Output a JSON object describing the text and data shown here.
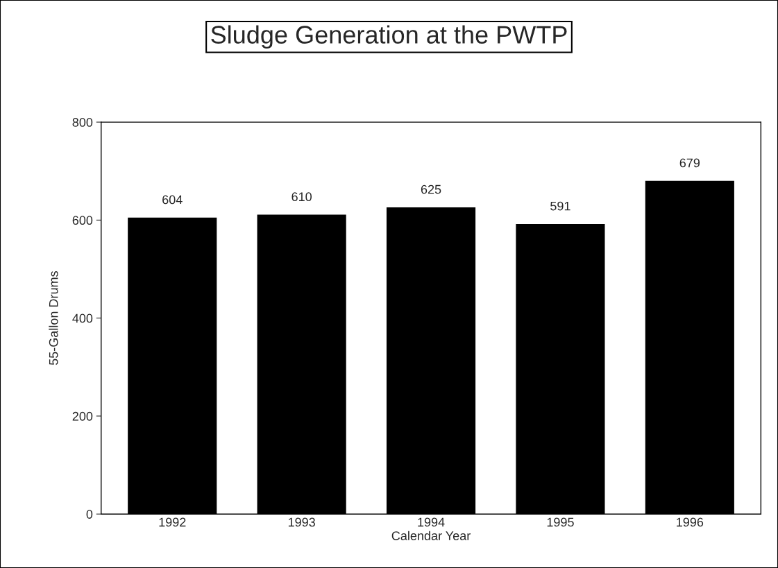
{
  "chart_data": {
    "type": "bar",
    "title": "Sludge Generation at the PWTP",
    "xlabel": "Calendar Year",
    "ylabel": "55-Gallon Drums",
    "categories": [
      "1992",
      "1993",
      "1994",
      "1995",
      "1996"
    ],
    "values": [
      604,
      610,
      625,
      591,
      679
    ],
    "color": "#000000",
    "ylim": [
      0,
      800
    ],
    "yticks": [
      0,
      200,
      400,
      600,
      800
    ],
    "data_labels": true,
    "grid": false,
    "legend": false
  }
}
